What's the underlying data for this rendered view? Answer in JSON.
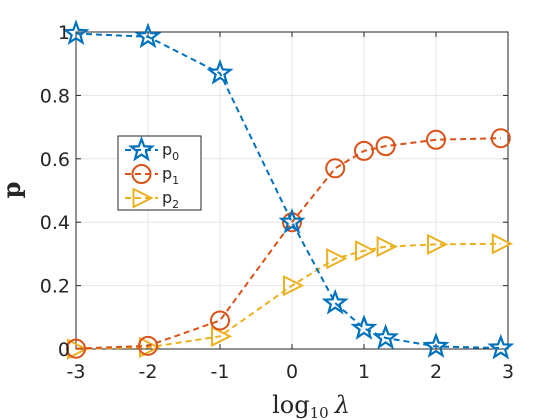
{
  "chart_data": {
    "type": "line",
    "title": "",
    "xlabel": "log",
    "xlabel_sub": "10",
    "xlabel_symbol": "λ",
    "ylabel": "p",
    "xlim": [
      -3,
      3
    ],
    "ylim": [
      0,
      1
    ],
    "xticks": [
      -3,
      -2,
      -1,
      0,
      1,
      2,
      3
    ],
    "xtick_labels": [
      "-3",
      "-2",
      "-1",
      "0",
      "1",
      "2",
      "3"
    ],
    "yticks": [
      0,
      0.2,
      0.4,
      0.6,
      0.8,
      1
    ],
    "ytick_labels": [
      "0",
      "0.2",
      "0.4",
      "0.6",
      "0.8",
      "1"
    ],
    "grid": true,
    "legend_position": "center-left",
    "series": [
      {
        "name": "p",
        "name_sub": "0",
        "color": "#0072BD",
        "marker": "star",
        "line": "dashed",
        "x": [
          -3,
          -2,
          -1,
          0,
          0.6,
          1,
          1.3,
          2,
          2.9
        ],
        "y": [
          0.995,
          0.985,
          0.87,
          0.4,
          0.145,
          0.065,
          0.035,
          0.008,
          0.003
        ]
      },
      {
        "name": "p",
        "name_sub": "1",
        "color": "#D95319",
        "marker": "circle",
        "line": "dashed",
        "x": [
          -3,
          -2,
          -1,
          0,
          0.6,
          1,
          1.3,
          2,
          2.9
        ],
        "y": [
          0.001,
          0.01,
          0.09,
          0.4,
          0.57,
          0.625,
          0.64,
          0.66,
          0.665
        ]
      },
      {
        "name": "p",
        "name_sub": "2",
        "color": "#EDB120",
        "marker": "triangle-right",
        "line": "dashed",
        "x": [
          -3,
          -2,
          -1,
          0,
          0.6,
          1,
          1.3,
          2,
          2.9
        ],
        "y": [
          0.0,
          0.005,
          0.04,
          0.2,
          0.285,
          0.31,
          0.323,
          0.33,
          0.332
        ]
      }
    ]
  }
}
